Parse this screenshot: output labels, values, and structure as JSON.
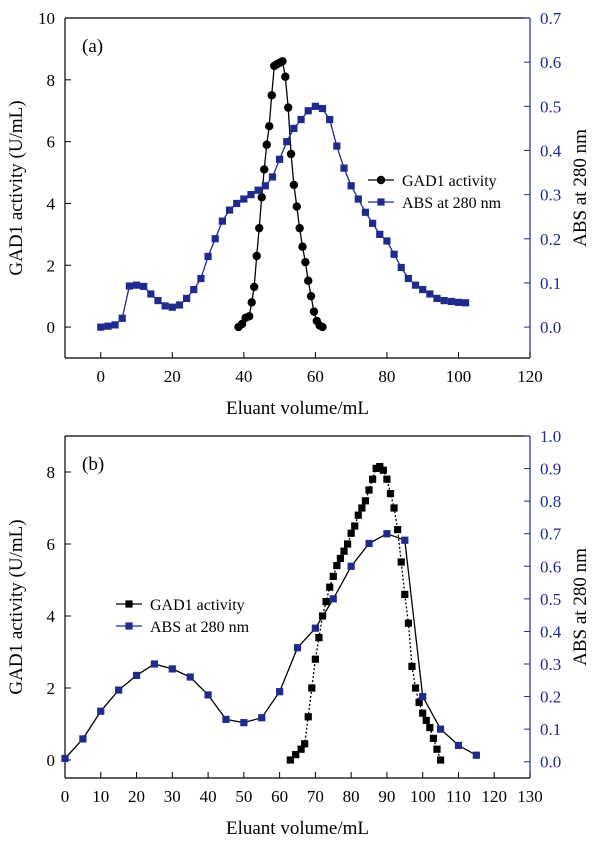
{
  "chart_data": [
    {
      "type": "line",
      "panel_label": "(a)",
      "xlabel": "Eluant volume/mL",
      "ylabel_left": "GAD1 activity (U/mL)",
      "ylabel_right": "ABS at 280 nm",
      "xlim": [
        -10,
        120
      ],
      "ylim_left": [
        -1,
        10
      ],
      "ylim_right": [
        -0.07,
        0.7
      ],
      "xticks": [
        0,
        20,
        40,
        60,
        80,
        100,
        120
      ],
      "yticks_left": [
        0,
        2,
        4,
        6,
        8,
        10
      ],
      "yticks_right": [
        0.0,
        0.1,
        0.2,
        0.3,
        0.4,
        0.5,
        0.6,
        0.7
      ],
      "legend_position": "right",
      "colors": {
        "activity": "#000000",
        "abs": "#1f2a8c",
        "right_axis": "#1f2a8c"
      },
      "series": [
        {
          "name": "GAD1 activity",
          "axis": "left",
          "marker": "circle",
          "line": "solid",
          "x": [
            38.5,
            39.5,
            40.5,
            41.5,
            42.2,
            42.9,
            43.6,
            44.3,
            45.0,
            45.7,
            46.4,
            47.1,
            47.8,
            48.5,
            49.2,
            50.0,
            50.8,
            51.6,
            52.4,
            53.2,
            54.0,
            54.8,
            55.6,
            56.4,
            57.2,
            58.0,
            58.8,
            59.6,
            60.4,
            61.2,
            62.0
          ],
          "y": [
            0.0,
            0.1,
            0.3,
            0.35,
            0.8,
            1.3,
            2.3,
            3.2,
            4.2,
            5.1,
            5.9,
            6.5,
            7.5,
            8.45,
            8.5,
            8.55,
            8.6,
            8.1,
            7.1,
            5.6,
            4.6,
            3.9,
            3.2,
            2.6,
            2.1,
            1.5,
            1.0,
            0.5,
            0.2,
            0.05,
            0.0
          ]
        },
        {
          "name": "ABS at 280 nm",
          "axis": "right",
          "marker": "square",
          "line": "solid",
          "x": [
            0,
            2,
            4,
            6,
            8,
            10,
            12,
            14,
            16,
            18,
            20,
            22,
            24,
            26,
            28,
            30,
            32,
            34,
            36,
            38,
            40,
            42,
            44,
            46,
            48,
            50,
            52,
            54,
            56,
            58,
            60,
            62,
            64,
            66,
            68,
            70,
            72,
            74,
            76,
            78,
            80,
            82,
            84,
            86,
            88,
            90,
            92,
            94,
            96,
            98,
            100,
            102
          ],
          "y": [
            0.0,
            0.002,
            0.005,
            0.02,
            0.093,
            0.095,
            0.092,
            0.075,
            0.06,
            0.048,
            0.045,
            0.05,
            0.065,
            0.085,
            0.11,
            0.16,
            0.2,
            0.24,
            0.265,
            0.28,
            0.29,
            0.3,
            0.31,
            0.32,
            0.34,
            0.38,
            0.42,
            0.45,
            0.47,
            0.49,
            0.5,
            0.495,
            0.47,
            0.41,
            0.36,
            0.32,
            0.29,
            0.26,
            0.235,
            0.21,
            0.195,
            0.165,
            0.135,
            0.11,
            0.095,
            0.085,
            0.075,
            0.065,
            0.06,
            0.058,
            0.056,
            0.055
          ]
        }
      ]
    },
    {
      "type": "line",
      "panel_label": "(b)",
      "xlabel": "Eluant volume/mL",
      "ylabel_left": "GAD1 activity (U/mL)",
      "ylabel_right": "ABS at 280 nm",
      "xlim": [
        0,
        130
      ],
      "ylim_left": [
        -0.5,
        9
      ],
      "ylim_right": [
        -0.05,
        1.0
      ],
      "xticks": [
        0,
        10,
        20,
        30,
        40,
        50,
        60,
        70,
        80,
        90,
        100,
        110,
        120,
        130
      ],
      "yticks_left": [
        0,
        2,
        4,
        6,
        8
      ],
      "yticks_right": [
        0.0,
        0.1,
        0.2,
        0.3,
        0.4,
        0.5,
        0.6,
        0.7,
        0.8,
        0.9,
        1.0
      ],
      "legend_position": "left",
      "colors": {
        "activity": "#000000",
        "abs": "#1f2a8c",
        "right_axis": "#1f2a8c"
      },
      "series": [
        {
          "name": "GAD1 activity",
          "axis": "left",
          "marker": "square",
          "line": "dotted",
          "x": [
            63,
            64.5,
            66,
            67,
            68,
            69,
            70,
            71,
            72,
            73,
            74,
            75,
            76,
            77,
            78,
            79,
            80,
            81,
            82,
            83,
            84,
            85,
            86,
            87,
            88,
            89,
            90,
            91,
            92,
            93,
            94,
            95,
            96,
            97,
            98,
            99,
            100,
            101,
            102,
            103,
            104,
            105
          ],
          "y": [
            0.0,
            0.15,
            0.3,
            0.45,
            1.2,
            2.0,
            2.8,
            3.4,
            4.0,
            4.4,
            4.8,
            5.1,
            5.4,
            5.6,
            5.8,
            6.0,
            6.3,
            6.5,
            6.8,
            7.0,
            7.2,
            7.5,
            7.8,
            8.1,
            8.15,
            8.05,
            7.8,
            7.4,
            7.0,
            6.4,
            5.5,
            4.6,
            3.8,
            2.6,
            2.0,
            1.6,
            1.3,
            1.1,
            0.9,
            0.6,
            0.3,
            0.0
          ]
        },
        {
          "name": "ABS at 280 nm",
          "axis": "right",
          "marker": "square",
          "line": "solid",
          "x": [
            0,
            5,
            10,
            15,
            20,
            25,
            30,
            35,
            40,
            45,
            50,
            55,
            60,
            65,
            70,
            75,
            80,
            85,
            90,
            95,
            100,
            105,
            110,
            115
          ],
          "y": [
            0.01,
            0.07,
            0.155,
            0.22,
            0.265,
            0.3,
            0.285,
            0.26,
            0.205,
            0.13,
            0.12,
            0.135,
            0.215,
            0.35,
            0.41,
            0.5,
            0.6,
            0.67,
            0.7,
            0.68,
            0.2,
            0.1,
            0.05,
            0.02
          ]
        }
      ]
    }
  ]
}
